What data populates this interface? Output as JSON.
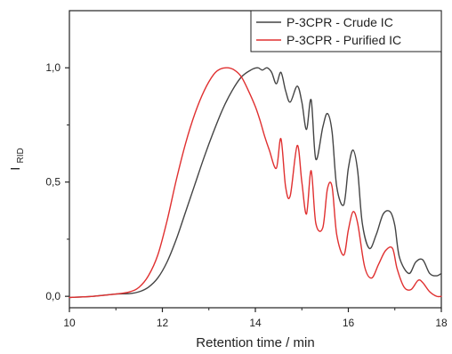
{
  "chart_data": {
    "type": "line",
    "title": "",
    "xlabel": "Retention time / min",
    "ylabel": {
      "main": "I",
      "sub": "RID"
    },
    "xlim": [
      10,
      18
    ],
    "ylim": [
      -0.05,
      1.25
    ],
    "x_ticks": [
      10,
      12,
      14,
      16,
      18
    ],
    "y_ticks": [
      0.0,
      0.5,
      1.0
    ],
    "y_tick_labels": [
      "0,0",
      "0,5",
      "1,0"
    ],
    "grid": false,
    "legend_position": "top-right",
    "series": [
      {
        "name": "P-3CPR - Crude IC",
        "color": "#444444",
        "x": [
          10,
          10.5,
          11,
          11.3,
          11.5,
          11.7,
          11.9,
          12.1,
          12.3,
          12.5,
          12.7,
          12.9,
          13.1,
          13.3,
          13.5,
          13.7,
          13.9,
          14.05,
          14.15,
          14.25,
          14.35,
          14.45,
          14.55,
          14.65,
          14.75,
          14.9,
          15.0,
          15.1,
          15.2,
          15.3,
          15.45,
          15.55,
          15.65,
          15.75,
          15.9,
          16.0,
          16.1,
          16.2,
          16.3,
          16.45,
          16.6,
          16.75,
          16.9,
          17.0,
          17.1,
          17.3,
          17.45,
          17.6,
          17.75,
          17.9,
          18.0
        ],
        "y": [
          -0.005,
          0.0,
          0.01,
          0.012,
          0.02,
          0.04,
          0.08,
          0.15,
          0.25,
          0.37,
          0.49,
          0.61,
          0.72,
          0.82,
          0.9,
          0.96,
          0.99,
          1.0,
          0.99,
          1.0,
          0.98,
          0.93,
          0.98,
          0.9,
          0.85,
          0.92,
          0.85,
          0.73,
          0.86,
          0.6,
          0.74,
          0.8,
          0.72,
          0.48,
          0.4,
          0.56,
          0.64,
          0.55,
          0.32,
          0.21,
          0.27,
          0.36,
          0.37,
          0.31,
          0.17,
          0.1,
          0.15,
          0.16,
          0.1,
          0.09,
          0.1
        ]
      },
      {
        "name": "P-3CPR - Purified IC",
        "color": "#e03030",
        "x": [
          10,
          10.5,
          11,
          11.3,
          11.5,
          11.7,
          11.9,
          12.1,
          12.3,
          12.5,
          12.7,
          12.9,
          13.1,
          13.25,
          13.4,
          13.55,
          13.7,
          13.85,
          14.0,
          14.1,
          14.2,
          14.3,
          14.45,
          14.55,
          14.65,
          14.75,
          14.9,
          15.0,
          15.1,
          15.2,
          15.3,
          15.45,
          15.55,
          15.65,
          15.75,
          15.9,
          16.0,
          16.1,
          16.2,
          16.35,
          16.5,
          16.65,
          16.8,
          16.95,
          17.05,
          17.2,
          17.35,
          17.5,
          17.6,
          17.75,
          17.9,
          18.0
        ],
        "y": [
          -0.005,
          0.0,
          0.01,
          0.02,
          0.04,
          0.09,
          0.18,
          0.33,
          0.51,
          0.67,
          0.8,
          0.9,
          0.97,
          0.995,
          1.0,
          0.99,
          0.96,
          0.9,
          0.83,
          0.77,
          0.7,
          0.64,
          0.56,
          0.69,
          0.48,
          0.44,
          0.66,
          0.5,
          0.36,
          0.55,
          0.32,
          0.3,
          0.47,
          0.48,
          0.27,
          0.18,
          0.29,
          0.37,
          0.32,
          0.13,
          0.08,
          0.14,
          0.2,
          0.21,
          0.12,
          0.04,
          0.03,
          0.07,
          0.06,
          0.02,
          0.0,
          0.0
        ]
      }
    ]
  }
}
